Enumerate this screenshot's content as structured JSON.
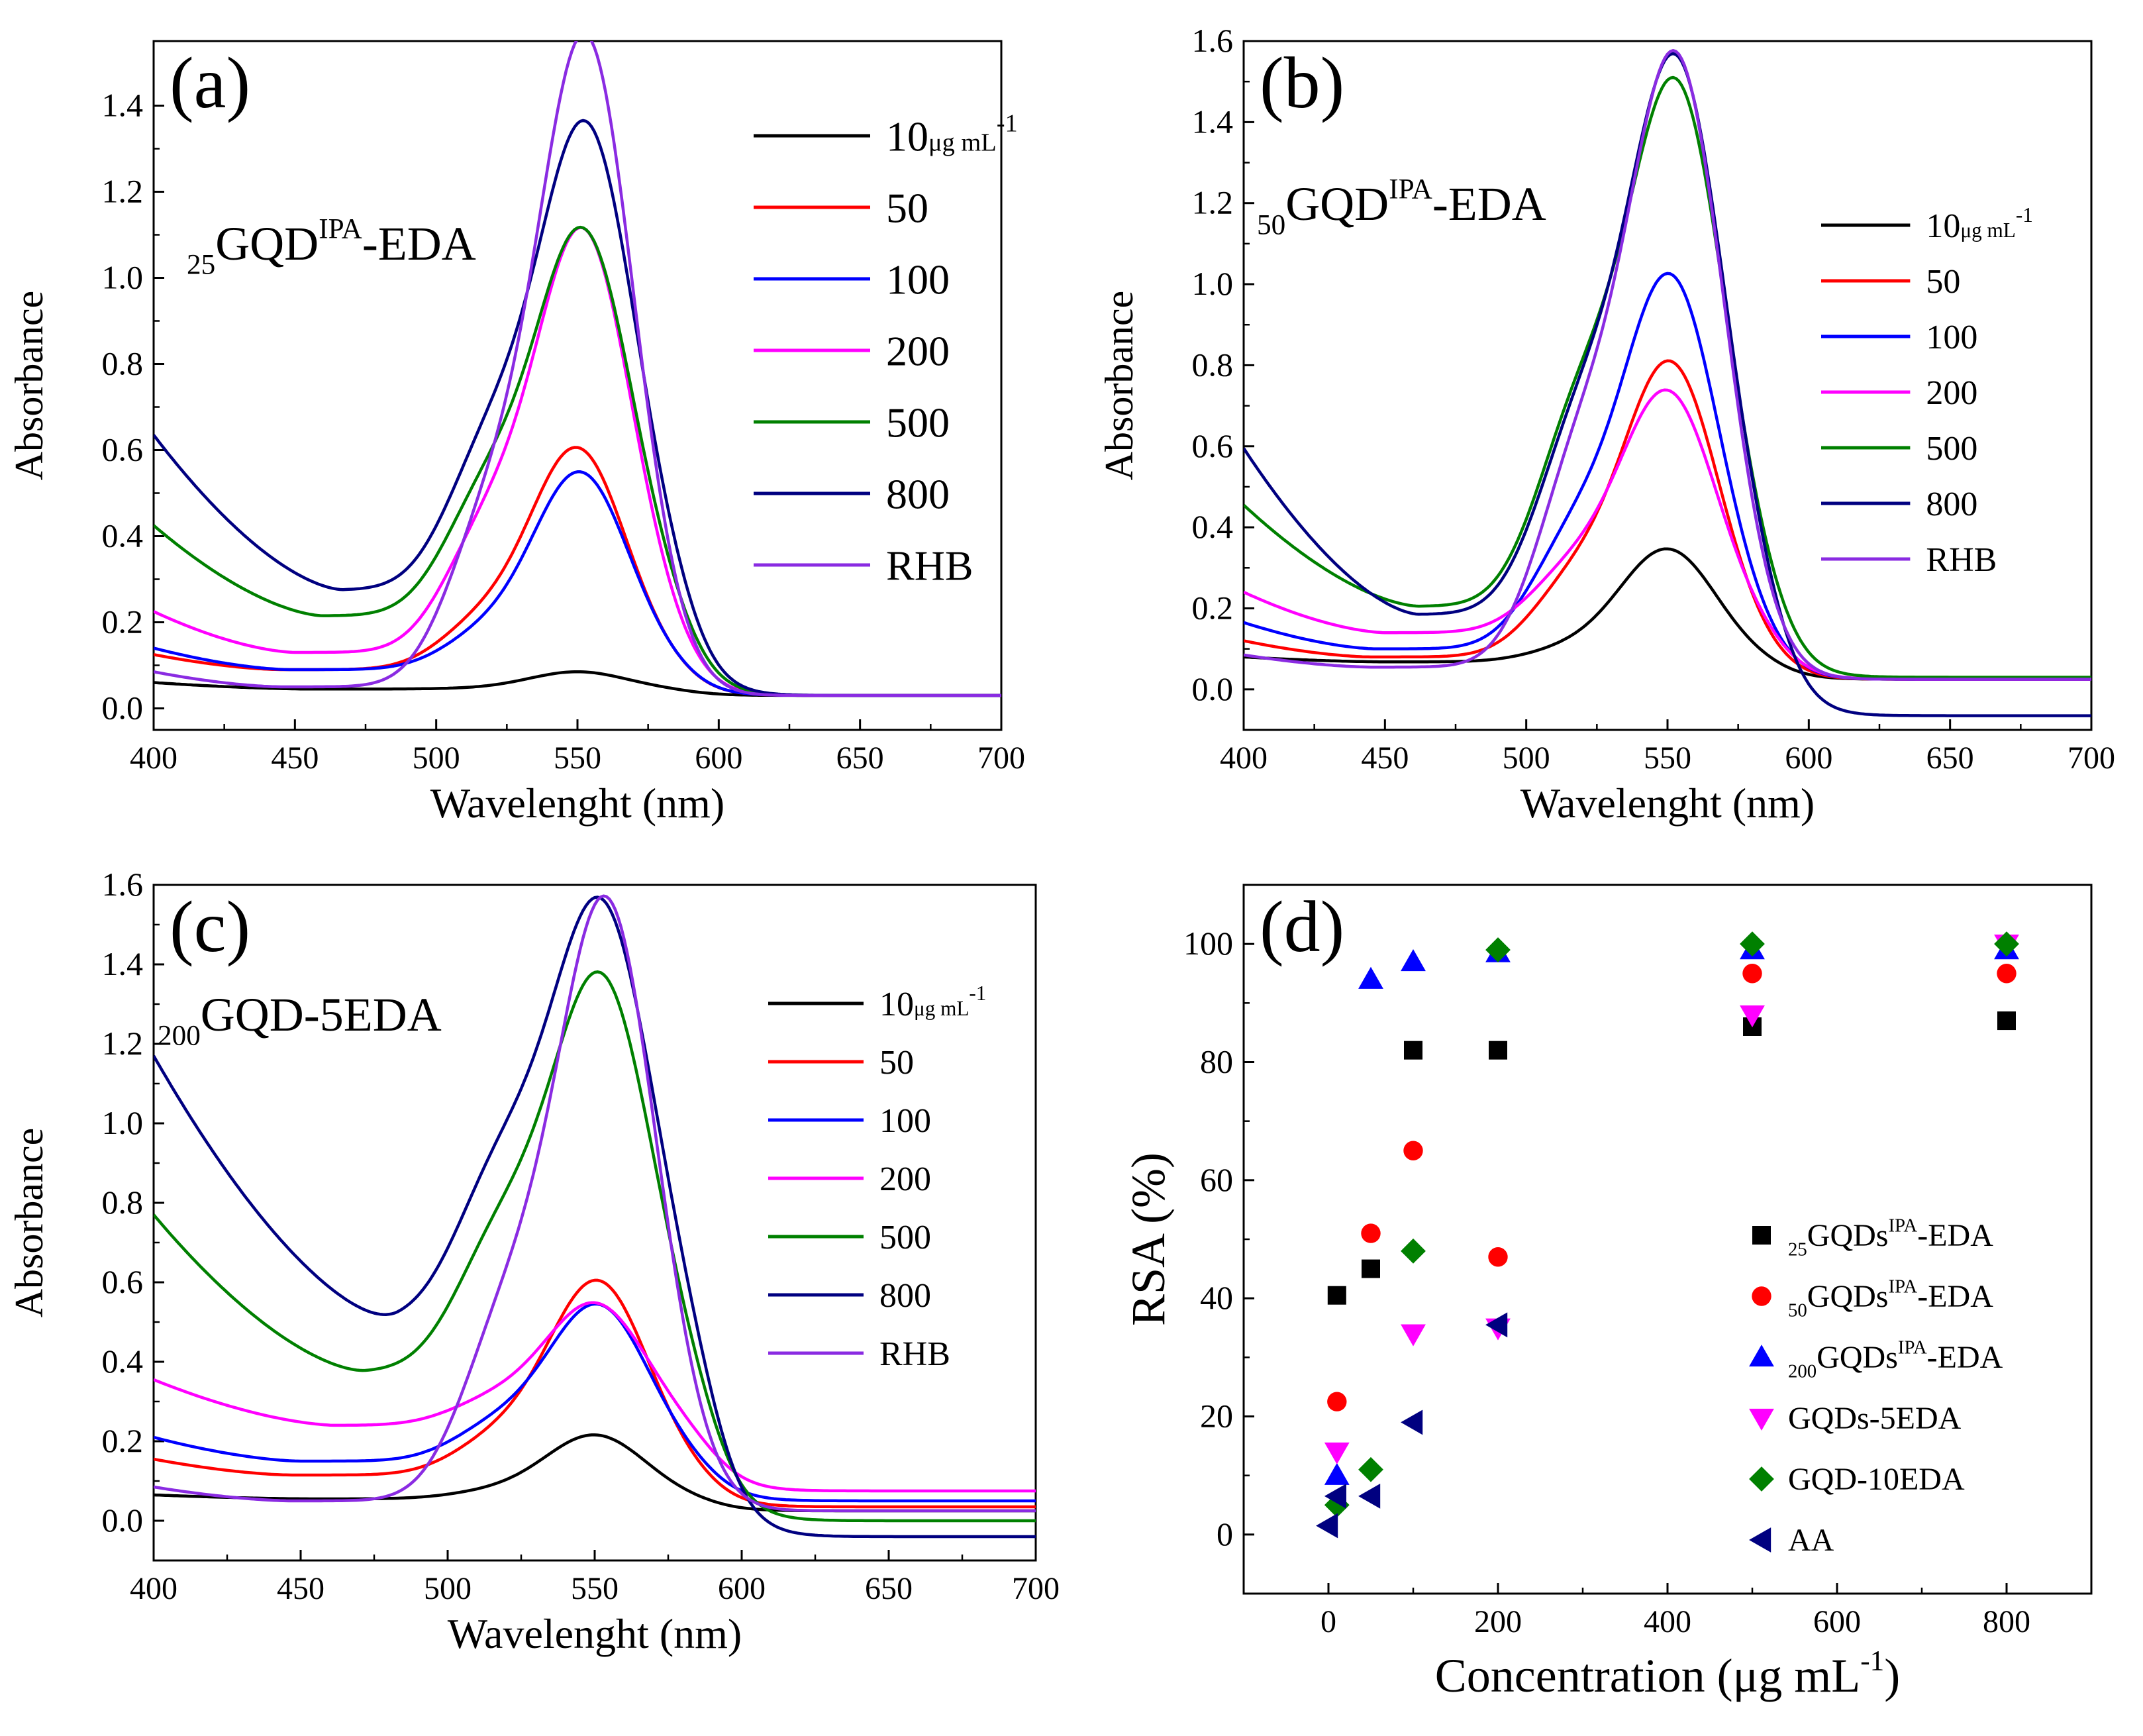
{
  "chart_data": [
    {
      "id": "a",
      "type": "line",
      "panel_label": "(a)",
      "sample_sub": "25",
      "sample_main": "GQD",
      "sample_sup": "IPA",
      "sample_tail": "-EDA",
      "xlabel": "Wavelenght (nm)",
      "ylabel": "Absorbance",
      "xlim": [
        400,
        700
      ],
      "ylim": [
        -0.05,
        1.55
      ],
      "xticks": [
        400,
        450,
        500,
        550,
        600,
        650,
        700
      ],
      "yticks": [
        0.0,
        0.2,
        0.4,
        0.6,
        0.8,
        1.0,
        1.2,
        1.4
      ],
      "legend_position": "upper-right",
      "legend_unit": "μg mL",
      "legend_unit_sup": "-1",
      "series": [
        {
          "name": "10",
          "color": "#000000",
          "y400": 0.06,
          "ymin": 0.045,
          "xmin": 455,
          "shoulder": 0.025,
          "peak": 0.085,
          "peak_x": 550,
          "tail": 0.03
        },
        {
          "name": "50",
          "color": "#ff0000",
          "y400": 0.125,
          "ymin": 0.09,
          "xmin": 445,
          "shoulder": 0.18,
          "peak": 0.6,
          "peak_x": 550,
          "tail": 0.03
        },
        {
          "name": "100",
          "color": "#0000ff",
          "y400": 0.14,
          "ymin": 0.09,
          "xmin": 448,
          "shoulder": 0.15,
          "peak": 0.545,
          "peak_x": 551,
          "tail": 0.03
        },
        {
          "name": "200",
          "color": "#ff00ff",
          "y400": 0.225,
          "ymin": 0.13,
          "xmin": 450,
          "shoulder": 0.25,
          "peak": 1.1,
          "peak_x": 552,
          "tail": 0.03
        },
        {
          "name": "500",
          "color": "#008000",
          "y400": 0.425,
          "ymin": 0.215,
          "xmin": 460,
          "shoulder": 0.28,
          "peak": 1.1,
          "peak_x": 552,
          "tail": 0.03
        },
        {
          "name": "800",
          "color": "#000080",
          "y400": 0.635,
          "ymin": 0.275,
          "xmin": 467,
          "shoulder": 0.27,
          "peak": 1.345,
          "peak_x": 553,
          "tail": 0.03
        },
        {
          "name": "RHB",
          "color": "#8a2be2",
          "y400": 0.085,
          "ymin": 0.05,
          "xmin": 445,
          "shoulder": 0.22,
          "peak": 1.545,
          "peak_x": 553,
          "tail": 0.03
        }
      ]
    },
    {
      "id": "b",
      "type": "line",
      "panel_label": "(b)",
      "sample_sub": "50",
      "sample_main": "GQD",
      "sample_sup": "IPA",
      "sample_tail": "-EDA",
      "xlabel": "Wavelenght (nm)",
      "ylabel": "Absorbance",
      "xlim": [
        400,
        700
      ],
      "ylim": [
        -0.1,
        1.6
      ],
      "xticks": [
        400,
        450,
        500,
        550,
        600,
        650,
        700
      ],
      "yticks": [
        0.0,
        0.2,
        0.4,
        0.6,
        0.8,
        1.0,
        1.2,
        1.4,
        1.6
      ],
      "legend_position": "right",
      "legend_unit": "μg mL",
      "legend_unit_sup": "-1",
      "series": [
        {
          "name": "10",
          "color": "#000000",
          "y400": 0.08,
          "ymin": 0.068,
          "xmin": 450,
          "shoulder": 0.1,
          "peak": 0.345,
          "peak_x": 550,
          "tail": 0.025
        },
        {
          "name": "50",
          "color": "#ff0000",
          "y400": 0.12,
          "ymin": 0.08,
          "xmin": 445,
          "shoulder": 0.22,
          "peak": 0.8,
          "peak_x": 551,
          "tail": 0.025
        },
        {
          "name": "100",
          "color": "#0000ff",
          "y400": 0.165,
          "ymin": 0.1,
          "xmin": 447,
          "shoulder": 0.26,
          "peak": 1.01,
          "peak_x": 551,
          "tail": 0.025
        },
        {
          "name": "200",
          "color": "#ff00ff",
          "y400": 0.24,
          "ymin": 0.14,
          "xmin": 450,
          "shoulder": 0.22,
          "peak": 0.73,
          "peak_x": 550,
          "tail": 0.025
        },
        {
          "name": "500",
          "color": "#008000",
          "y400": 0.455,
          "ymin": 0.205,
          "xmin": 462,
          "shoulder": 0.33,
          "peak": 1.48,
          "peak_x": 553,
          "tail": 0.03
        },
        {
          "name": "800",
          "color": "#000080",
          "y400": 0.595,
          "ymin": 0.185,
          "xmin": 462,
          "shoulder": 0.3,
          "peak": 1.54,
          "peak_x": 553,
          "tail": -0.065
        },
        {
          "name": "RHB",
          "color": "#8a2be2",
          "y400": 0.085,
          "ymin": 0.055,
          "xmin": 445,
          "shoulder": 0.3,
          "peak": 1.545,
          "peak_x": 553,
          "tail": 0.025
        }
      ]
    },
    {
      "id": "c",
      "type": "line",
      "panel_label": "(c)",
      "sample_sub": "200",
      "sample_main": "GQD-5EDA",
      "sample_sup": "",
      "sample_tail": "",
      "xlabel": "Wavelenght (nm)",
      "ylabel": "Absorbance",
      "xlim": [
        400,
        700
      ],
      "ylim": [
        -0.1,
        1.6
      ],
      "xticks": [
        400,
        450,
        500,
        550,
        600,
        650,
        700
      ],
      "yticks": [
        0.0,
        0.2,
        0.4,
        0.6,
        0.8,
        1.0,
        1.2,
        1.4,
        1.6
      ],
      "legend_position": "right",
      "legend_unit": "μg mL",
      "legend_unit_sup": "-1",
      "series": [
        {
          "name": "10",
          "color": "#000000",
          "y400": 0.065,
          "ymin": 0.055,
          "xmin": 455,
          "shoulder": 0.1,
          "peak": 0.215,
          "peak_x": 550,
          "tail": 0.025
        },
        {
          "name": "50",
          "color": "#ff0000",
          "y400": 0.155,
          "ymin": 0.115,
          "xmin": 447,
          "shoulder": 0.16,
          "peak": 0.6,
          "peak_x": 551,
          "tail": 0.035
        },
        {
          "name": "100",
          "color": "#0000ff",
          "y400": 0.21,
          "ymin": 0.15,
          "xmin": 450,
          "shoulder": 0.2,
          "peak": 0.54,
          "peak_x": 551,
          "tail": 0.05
        },
        {
          "name": "200",
          "color": "#ff00ff",
          "y400": 0.355,
          "ymin": 0.24,
          "xmin": 462,
          "shoulder": 0.18,
          "peak": 0.545,
          "peak_x": 550,
          "tail": 0.075
        },
        {
          "name": "500",
          "color": "#008000",
          "y400": 0.77,
          "ymin": 0.375,
          "xmin": 472,
          "shoulder": 0.3,
          "peak": 1.36,
          "peak_x": 552,
          "tail": 0.0
        },
        {
          "name": "800",
          "color": "#000080",
          "y400": 1.17,
          "ymin": 0.5,
          "xmin": 483,
          "shoulder": 0.32,
          "peak": 1.545,
          "peak_x": 552,
          "tail": -0.04
        },
        {
          "name": "RHB",
          "color": "#8a2be2",
          "y400": 0.085,
          "ymin": 0.05,
          "xmin": 447,
          "shoulder": 0.26,
          "peak": 1.545,
          "peak_x": 554,
          "tail": 0.025
        }
      ]
    },
    {
      "id": "d",
      "type": "scatter",
      "panel_label": "(d)",
      "xlabel": "Concentration (μg mL",
      "xlabel_sup": "-1",
      "xlabel_end": ")",
      "ylabel": "RSA (%)",
      "xlim": [
        -100,
        900
      ],
      "ylim": [
        -10,
        110
      ],
      "xticks": [
        0,
        200,
        400,
        600,
        800
      ],
      "yticks": [
        0,
        20,
        40,
        60,
        80,
        100
      ],
      "legend_position": "lower-right",
      "series": [
        {
          "label_sub": "25",
          "label_main": "GQDs",
          "label_sup": "IPA",
          "label_tail": "-EDA",
          "marker": "square",
          "color": "#000000",
          "x": [
            10,
            50,
            100,
            200,
            500,
            800
          ],
          "y": [
            40.5,
            45,
            82,
            82,
            86,
            87
          ]
        },
        {
          "label_sub": "50",
          "label_main": "GQDs",
          "label_sup": "IPA",
          "label_tail": "-EDA",
          "marker": "circle",
          "color": "#ff0000",
          "x": [
            10,
            50,
            100,
            200,
            500,
            800
          ],
          "y": [
            22.5,
            51,
            65,
            47,
            95,
            95
          ]
        },
        {
          "label_sub": "200",
          "label_main": "GQDs",
          "label_sup": "IPA",
          "label_tail": "-EDA",
          "marker": "triangle-up",
          "color": "#0000ff",
          "x": [
            10,
            50,
            100,
            200,
            500,
            800
          ],
          "y": [
            10,
            94,
            97,
            98.5,
            99,
            99
          ]
        },
        {
          "label_sub": "",
          "label_main": "GQDs-5EDA",
          "label_sup": "",
          "label_tail": "",
          "marker": "triangle-down",
          "color": "#ff00ff",
          "x": [
            10,
            100,
            200,
            500,
            800
          ],
          "y": [
            14,
            34,
            35,
            88,
            100
          ]
        },
        {
          "label_sub": "",
          "label_main": "GQD-10EDA",
          "label_sup": "",
          "label_tail": "",
          "marker": "diamond",
          "color": "#008000",
          "x": [
            10,
            50,
            100,
            200,
            500,
            800
          ],
          "y": [
            5,
            11,
            48,
            99,
            100,
            100
          ]
        },
        {
          "label_sub": "",
          "label_main": "AA",
          "label_sup": "",
          "label_tail": "",
          "marker": "triangle-left",
          "color": "#000080",
          "x": [
            0,
            10,
            50,
            100,
            200
          ],
          "y": [
            1.5,
            6.5,
            6.5,
            19,
            35.5
          ]
        }
      ]
    }
  ]
}
